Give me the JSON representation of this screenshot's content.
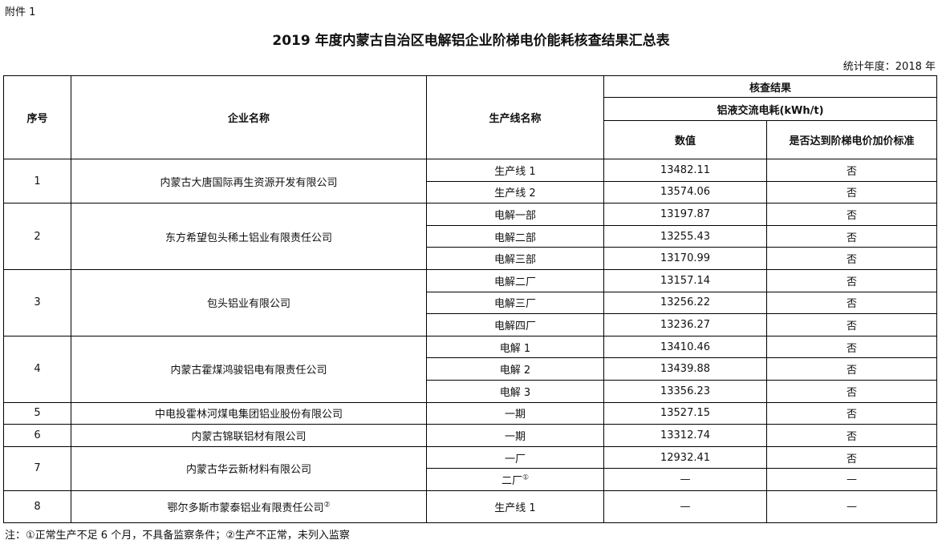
{
  "attachment_label": "附件 1",
  "title": "2019 年度内蒙古自治区电解铝企业阶梯电价能耗核查结果汇总表",
  "statistic_year": "统计年度：2018 年",
  "headers": {
    "index": "序号",
    "company": "企业名称",
    "line": "生产线名称",
    "result": "核查结果",
    "consumption": "铝液交流电耗(kWh/t)",
    "value": "数值",
    "reached": "是否达到阶梯电价加价标准"
  },
  "rows": [
    {
      "index": "1",
      "company": "内蒙古大唐国际再生资源开发有限公司",
      "company_note": "",
      "lines": [
        {
          "name": "生产线 1",
          "note": "",
          "value": "13482.11",
          "reached": "否"
        },
        {
          "name": "生产线 2",
          "note": "",
          "value": "13574.06",
          "reached": "否"
        }
      ]
    },
    {
      "index": "2",
      "company": "东方希望包头稀土铝业有限责任公司",
      "company_note": "",
      "lines": [
        {
          "name": "电解一部",
          "note": "",
          "value": "13197.87",
          "reached": "否"
        },
        {
          "name": "电解二部",
          "note": "",
          "value": "13255.43",
          "reached": "否"
        },
        {
          "name": "电解三部",
          "note": "",
          "value": "13170.99",
          "reached": "否"
        }
      ]
    },
    {
      "index": "3",
      "company": "包头铝业有限公司",
      "company_note": "",
      "lines": [
        {
          "name": "电解二厂",
          "note": "",
          "value": "13157.14",
          "reached": "否"
        },
        {
          "name": "电解三厂",
          "note": "",
          "value": "13256.22",
          "reached": "否"
        },
        {
          "name": "电解四厂",
          "note": "",
          "value": "13236.27",
          "reached": "否"
        }
      ]
    },
    {
      "index": "4",
      "company": "内蒙古霍煤鸿骏铝电有限责任公司",
      "company_note": "",
      "lines": [
        {
          "name": "电解 1",
          "note": "",
          "value": "13410.46",
          "reached": "否"
        },
        {
          "name": "电解 2",
          "note": "",
          "value": "13439.88",
          "reached": "否"
        },
        {
          "name": "电解 3",
          "note": "",
          "value": "13356.23",
          "reached": "否"
        }
      ]
    },
    {
      "index": "5",
      "company": "中电投霍林河煤电集团铝业股份有限公司",
      "company_note": "",
      "lines": [
        {
          "name": "一期",
          "note": "",
          "value": "13527.15",
          "reached": "否"
        }
      ]
    },
    {
      "index": "6",
      "company": "内蒙古锦联铝材有限公司",
      "company_note": "",
      "lines": [
        {
          "name": "一期",
          "note": "",
          "value": "13312.74",
          "reached": "否"
        }
      ]
    },
    {
      "index": "7",
      "company": "内蒙古华云新材料有限公司",
      "company_note": "",
      "lines": [
        {
          "name": "一厂",
          "note": "",
          "value": "12932.41",
          "reached": "否"
        },
        {
          "name": "二厂",
          "note": "①",
          "value": "—",
          "reached": "—"
        }
      ]
    },
    {
      "index": "8",
      "company": "鄂尔多斯市蒙泰铝业有限责任公司",
      "company_note": "②",
      "lines": [
        {
          "name": "生产线 1",
          "note": "",
          "value": "—",
          "reached": "—"
        }
      ]
    }
  ],
  "footnote": "注：①正常生产不足 6 个月，不具备监察条件；②生产不正常，未列入监察"
}
